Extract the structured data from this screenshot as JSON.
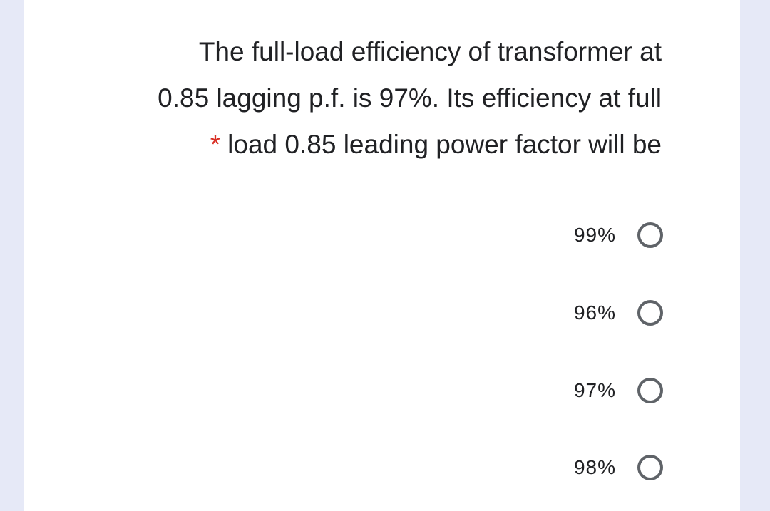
{
  "question": {
    "lines": [
      "The full-load efficiency of transformer at",
      "0.85 lagging p.f. is 97%. Its efficiency at full",
      "load 0.85 leading power factor will be"
    ],
    "required_marker": "*"
  },
  "options": [
    {
      "label": "99%"
    },
    {
      "label": "96%"
    },
    {
      "label": "97%"
    },
    {
      "label": "98%"
    }
  ],
  "colors": {
    "background": "#e6e9f7",
    "card": "#ffffff",
    "text": "#202124",
    "required": "#d93025",
    "radio_border": "#5f6368"
  },
  "icons": {
    "radio": "radio-unchecked-icon"
  }
}
